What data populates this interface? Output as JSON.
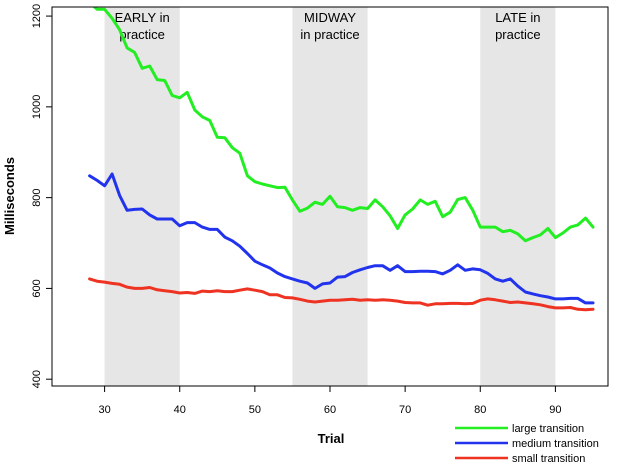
{
  "chart_data": {
    "type": "line",
    "xlabel": "Trial",
    "ylabel": "Milliseconds",
    "xlim": [
      23,
      97
    ],
    "ylim": [
      385,
      1220
    ],
    "xticks": [
      30,
      40,
      50,
      60,
      70,
      80,
      90
    ],
    "yticks": [
      400,
      600,
      800,
      1000,
      1200
    ],
    "grid": false,
    "legend_position": "bottom-right",
    "shaded_regions": [
      {
        "label": "EARLY in practice",
        "label_lines": [
          "EARLY in",
          "practice"
        ],
        "x_start": 30,
        "x_end": 40
      },
      {
        "label": "MIDWAY in practice",
        "label_lines": [
          "MIDWAY",
          "in practice"
        ],
        "x_start": 55,
        "x_end": 65
      },
      {
        "label": "LATE in practice",
        "label_lines": [
          "LATE in",
          "practice"
        ],
        "x_start": 80,
        "x_end": 90
      }
    ],
    "x": [
      28,
      29,
      30,
      31,
      32,
      33,
      34,
      35,
      36,
      37,
      38,
      39,
      40,
      41,
      42,
      43,
      44,
      45,
      46,
      47,
      48,
      49,
      50,
      51,
      52,
      53,
      54,
      55,
      56,
      57,
      58,
      59,
      60,
      61,
      62,
      63,
      64,
      65,
      66,
      67,
      68,
      69,
      70,
      71,
      72,
      73,
      74,
      75,
      76,
      77,
      78,
      79,
      80,
      81,
      82,
      83,
      84,
      85,
      86,
      87,
      88,
      89,
      90,
      91,
      92,
      93,
      94,
      95
    ],
    "series": [
      {
        "name": "large transition",
        "color": "#22ee22",
        "values": [
          1230,
          1215,
          1215,
          1195,
          1170,
          1130,
          1120,
          1085,
          1090,
          1060,
          1058,
          1025,
          1020,
          1032,
          993,
          978,
          970,
          933,
          932,
          910,
          898,
          848,
          835,
          830,
          826,
          822,
          823,
          795,
          770,
          777,
          790,
          785,
          803,
          780,
          778,
          772,
          778,
          776,
          795,
          780,
          760,
          732,
          762,
          775,
          795,
          785,
          792,
          758,
          768,
          796,
          800,
          772,
          735,
          735,
          735,
          725,
          728,
          720,
          705,
          712,
          718,
          732,
          712,
          722,
          735,
          740,
          755,
          735
        ]
      },
      {
        "name": "medium transition",
        "color": "#2233ee",
        "values": [
          848,
          838,
          826,
          852,
          805,
          772,
          774,
          775,
          762,
          753,
          753,
          753,
          738,
          745,
          745,
          735,
          730,
          730,
          713,
          705,
          693,
          677,
          660,
          652,
          645,
          634,
          626,
          621,
          616,
          612,
          600,
          610,
          612,
          625,
          626,
          635,
          641,
          646,
          650,
          650,
          640,
          650,
          637,
          637,
          638,
          638,
          637,
          632,
          640,
          652,
          640,
          643,
          641,
          633,
          621,
          616,
          621,
          605,
          592,
          588,
          584,
          581,
          577,
          577,
          578,
          578,
          568,
          568
        ]
      },
      {
        "name": "small transition",
        "color": "#ee3322",
        "values": [
          621,
          616,
          614,
          611,
          609,
          603,
          600,
          600,
          602,
          597,
          595,
          593,
          590,
          591,
          589,
          594,
          593,
          595,
          593,
          593,
          596,
          599,
          596,
          593,
          586,
          586,
          580,
          579,
          576,
          572,
          570,
          572,
          574,
          574,
          575,
          576,
          574,
          575,
          574,
          575,
          574,
          572,
          569,
          568,
          568,
          563,
          566,
          566,
          567,
          567,
          566,
          567,
          574,
          577,
          575,
          572,
          569,
          570,
          568,
          566,
          564,
          560,
          557,
          557,
          558,
          554,
          553,
          554
        ]
      }
    ]
  }
}
